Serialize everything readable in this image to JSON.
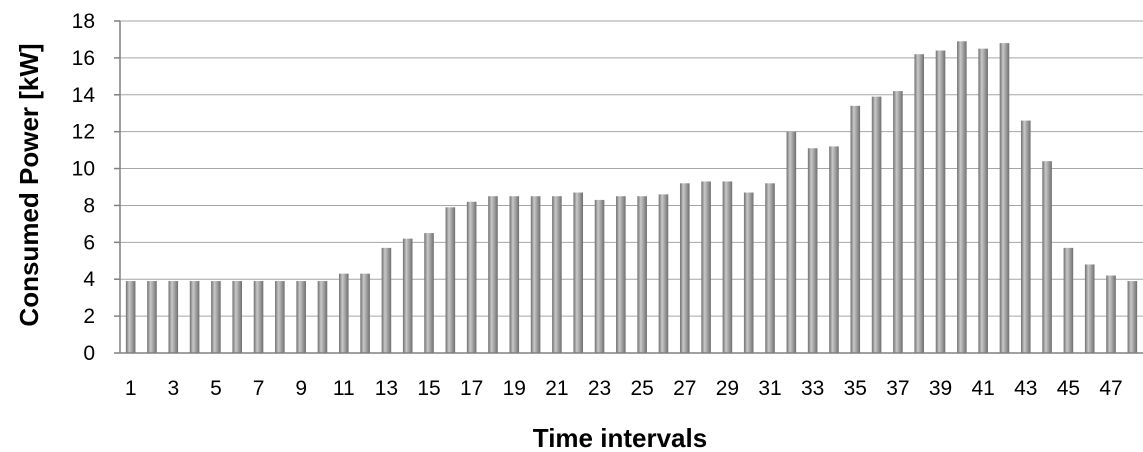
{
  "chart_data": {
    "type": "bar",
    "title": "",
    "xlabel": "Time intervals",
    "ylabel": "Consumed Power [kW]",
    "ylim": [
      0,
      18
    ],
    "y_ticks": [
      0,
      2,
      4,
      6,
      8,
      10,
      12,
      14,
      16,
      18
    ],
    "x_tick_labels": [
      "1",
      "3",
      "5",
      "7",
      "9",
      "11",
      "13",
      "15",
      "17",
      "19",
      "21",
      "23",
      "25",
      "27",
      "29",
      "31",
      "33",
      "35",
      "37",
      "39",
      "41",
      "43",
      "45",
      "47"
    ],
    "grid": true,
    "legend": false,
    "categories": [
      "1",
      "2",
      "3",
      "4",
      "5",
      "6",
      "7",
      "8",
      "9",
      "10",
      "11",
      "12",
      "13",
      "14",
      "15",
      "16",
      "17",
      "18",
      "19",
      "20",
      "21",
      "22",
      "23",
      "24",
      "25",
      "26",
      "27",
      "28",
      "29",
      "30",
      "31",
      "32",
      "33",
      "34",
      "35",
      "36",
      "37",
      "38",
      "39",
      "40",
      "41",
      "42",
      "43",
      "44",
      "45",
      "46",
      "47",
      "48"
    ],
    "values": [
      3.9,
      3.9,
      3.9,
      3.9,
      3.9,
      3.9,
      3.9,
      3.9,
      3.9,
      3.9,
      4.3,
      4.3,
      5.7,
      6.2,
      6.5,
      7.9,
      8.2,
      8.5,
      8.5,
      8.5,
      8.5,
      8.7,
      8.3,
      8.5,
      8.5,
      8.6,
      9.2,
      9.3,
      9.3,
      8.7,
      9.2,
      12.0,
      11.1,
      11.2,
      13.4,
      13.9,
      14.2,
      16.2,
      16.4,
      16.9,
      16.5,
      16.8,
      12.6,
      10.4,
      5.7,
      4.8,
      4.2,
      3.9
    ],
    "colors": {
      "bar_light": "#c8c8c8",
      "bar_mid": "#a6a6a6",
      "bar_dark": "#6f6f6f",
      "grid": "#a6a6a6",
      "axis": "#808080"
    }
  }
}
